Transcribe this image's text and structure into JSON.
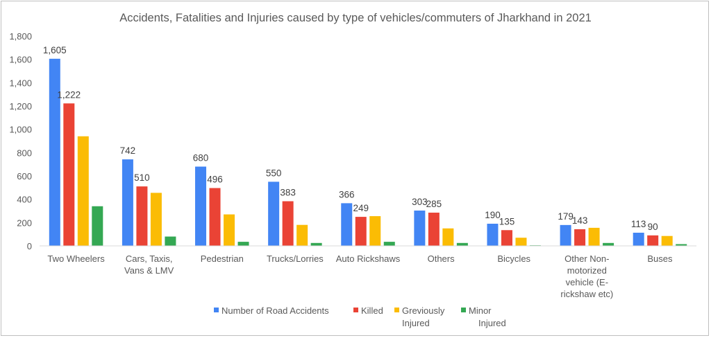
{
  "chart_data": {
    "type": "bar",
    "title": "Accidents, Fatalities and Injuries caused by type of vehicles/commuters of Jharkhand in 2021",
    "xlabel": "",
    "ylabel": "",
    "ylim": [
      0,
      1800
    ],
    "yticks": [
      "0",
      "200",
      "400",
      "600",
      "800",
      "1,000",
      "1,200",
      "1,400",
      "1,600",
      "1,800"
    ],
    "grid": false,
    "legend_position": "bottom",
    "categories": [
      [
        "Two Wheelers"
      ],
      [
        "Cars, Taxis,",
        "Vans & LMV"
      ],
      [
        "Pedestrian"
      ],
      [
        "Trucks/Lorries"
      ],
      [
        "Auto Rickshaws"
      ],
      [
        "Others"
      ],
      [
        "Bicycles"
      ],
      [
        "Other Non-",
        "motorized",
        "vehicle (E-",
        "rickshaw etc)"
      ],
      [
        "Buses"
      ]
    ],
    "series": [
      {
        "name": [
          "Number of Road Accidents"
        ],
        "color": "#4285f4",
        "values": [
          1605,
          742,
          680,
          550,
          366,
          303,
          190,
          179,
          113
        ],
        "labels": [
          "1,605",
          "742",
          "680",
          "550",
          "366",
          "303",
          "190",
          "179",
          "113"
        ]
      },
      {
        "name": [
          "Killed"
        ],
        "color": "#ea4335",
        "values": [
          1222,
          510,
          496,
          383,
          249,
          285,
          135,
          143,
          90
        ],
        "labels": [
          "1,222",
          "510",
          "496",
          "383",
          "249",
          "285",
          "135",
          "143",
          "90"
        ]
      },
      {
        "name": [
          "Greviously",
          "Injured"
        ],
        "color": "#fbbc04",
        "values": [
          940,
          455,
          270,
          180,
          255,
          150,
          70,
          155,
          85
        ],
        "labels": []
      },
      {
        "name": [
          "Minor",
          "Injured"
        ],
        "color": "#34a853",
        "values": [
          340,
          80,
          35,
          25,
          35,
          25,
          5,
          25,
          15
        ],
        "labels": []
      }
    ]
  }
}
